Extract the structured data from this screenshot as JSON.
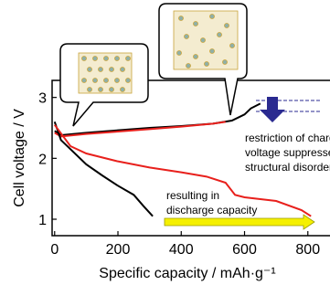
{
  "chart_data": {
    "type": "line",
    "x_label": "Specific capacity / mAh·g⁻¹",
    "y_label": "Cell voltage / V",
    "xlim": [
      -8,
      870
    ],
    "xticks": [
      0,
      200,
      400,
      600,
      800
    ],
    "ylim": [
      0.73,
      3.28
    ],
    "yticks": [
      1,
      2,
      3
    ],
    "annotations": [
      "restriction of charg",
      "voltage suppresse",
      "structural disorder",
      "resulting in",
      "discharge capacity"
    ],
    "series": [
      {
        "color": "#000000",
        "x": [
          0,
          20,
          100,
          200,
          300,
          400,
          500,
          560,
          600,
          620,
          650
        ],
        "values": [
          2.45,
          2.38,
          2.42,
          2.46,
          2.5,
          2.53,
          2.57,
          2.62,
          2.72,
          2.82,
          2.9
        ]
      },
      {
        "color": "#e8201c",
        "x": [
          0,
          20,
          100,
          200,
          300,
          400,
          500,
          540
        ],
        "values": [
          2.42,
          2.36,
          2.4,
          2.44,
          2.48,
          2.52,
          2.57,
          2.6
        ]
      },
      {
        "color": "#000000",
        "x": [
          0,
          20,
          50,
          100,
          150,
          200,
          250,
          280,
          310
        ],
        "values": [
          2.6,
          2.3,
          2.15,
          1.9,
          1.72,
          1.55,
          1.4,
          1.22,
          1.05
        ]
      },
      {
        "color": "#e8201c",
        "x": [
          0,
          50,
          100,
          200,
          300,
          400,
          480,
          540,
          570,
          600,
          700,
          780,
          810
        ],
        "values": [
          2.55,
          2.2,
          2.08,
          1.95,
          1.85,
          1.77,
          1.7,
          1.6,
          1.4,
          1.36,
          1.3,
          1.15,
          1.05
        ]
      }
    ]
  }
}
